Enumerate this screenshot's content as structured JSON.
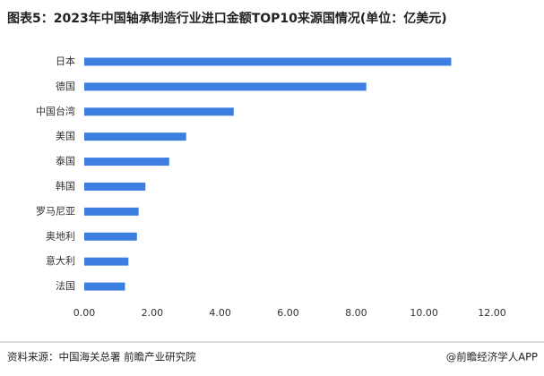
{
  "chart_data": {
    "type": "barh",
    "title": "图表5：2023年中国轴承制造行业进口金额TOP10来源国情况(单位：亿美元)",
    "categories": [
      "日本",
      "德国",
      "中国台湾",
      "美国",
      "泰国",
      "韩国",
      "罗马尼亚",
      "奥地利",
      "意大利",
      "法国"
    ],
    "values": [
      10.8,
      8.3,
      4.4,
      3.0,
      2.5,
      1.8,
      1.6,
      1.55,
      1.3,
      1.2
    ],
    "color": "#3d7fe0",
    "xlim": [
      0,
      12
    ],
    "xticks": [
      {
        "value": 0,
        "label": "0.00"
      },
      {
        "value": 2,
        "label": "2.00"
      },
      {
        "value": 4,
        "label": "4.00"
      },
      {
        "value": 6,
        "label": "6.00"
      },
      {
        "value": 8,
        "label": "8.00"
      },
      {
        "value": 10,
        "label": "10.00"
      },
      {
        "value": 12,
        "label": "12.00"
      }
    ],
    "source": "资料来源：中国海关总署 前瞻产业研究院",
    "credit": "@前瞻经济学人APP"
  }
}
